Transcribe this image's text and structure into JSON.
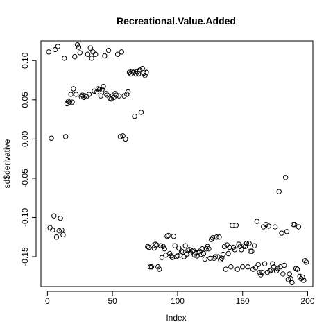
{
  "chart_data": {
    "type": "scatter",
    "title": "Recreational.Value.Added",
    "xlabel": "Index",
    "ylabel": "sd$derivative",
    "xlim": [
      -5,
      204
    ],
    "ylim": [
      -0.188,
      0.125
    ],
    "xticks": [
      0,
      50,
      100,
      150,
      200
    ],
    "xtick_labels": [
      "0",
      "50",
      "100",
      "150",
      "200"
    ],
    "yticks": [
      -0.15,
      -0.1,
      -0.05,
      0.0,
      0.05,
      0.1
    ],
    "ytick_labels": [
      "-0.15",
      "-0.10",
      "-0.05",
      "0.00",
      "0.05",
      "0.10"
    ],
    "grid": false,
    "marker": "open-circle",
    "points": [
      [
        1,
        0.111
      ],
      [
        2,
        -0.113
      ],
      [
        3,
        0.001
      ],
      [
        4,
        -0.116
      ],
      [
        5,
        -0.098
      ],
      [
        6,
        0.114
      ],
      [
        7,
        -0.125
      ],
      [
        8,
        0.118
      ],
      [
        9,
        -0.117
      ],
      [
        10,
        -0.101
      ],
      [
        11,
        -0.116
      ],
      [
        12,
        -0.122
      ],
      [
        13,
        0.103
      ],
      [
        14,
        0.003
      ],
      [
        15,
        0.045
      ],
      [
        16,
        0.048
      ],
      [
        17,
        0.047
      ],
      [
        18,
        0.057
      ],
      [
        19,
        0.047
      ],
      [
        20,
        0.064
      ],
      [
        21,
        0.105
      ],
      [
        22,
        0.057
      ],
      [
        23,
        0.12
      ],
      [
        24,
        0.117
      ],
      [
        25,
        0.11
      ],
      [
        26,
        0.054
      ],
      [
        27,
        0.056
      ],
      [
        28,
        0.053
      ],
      [
        29,
        0.055
      ],
      [
        30,
        0.054
      ],
      [
        31,
        0.108
      ],
      [
        32,
        0.057
      ],
      [
        33,
        0.116
      ],
      [
        34,
        0.103
      ],
      [
        35,
        0.111
      ],
      [
        36,
        0.061
      ],
      [
        37,
        0.108
      ],
      [
        38,
        0.06
      ],
      [
        39,
        0.064
      ],
      [
        40,
        0.063
      ],
      [
        41,
        0.055
      ],
      [
        42,
        0.063
      ],
      [
        43,
        0.067
      ],
      [
        44,
        0.106
      ],
      [
        45,
        0.058
      ],
      [
        46,
        0.056
      ],
      [
        47,
        0.113
      ],
      [
        48,
        0.052
      ],
      [
        49,
        0.051
      ],
      [
        50,
        0.055
      ],
      [
        51,
        0.053
      ],
      [
        52,
        0.058
      ],
      [
        53,
        0.056
      ],
      [
        54,
        0.108
      ],
      [
        55,
        0.055
      ],
      [
        56,
        0.003
      ],
      [
        57,
        0.111
      ],
      [
        58,
        0.004
      ],
      [
        59,
        0.055
      ],
      [
        60,
        0.0
      ],
      [
        61,
        0.057
      ],
      [
        62,
        0.06
      ],
      [
        63,
        0.085
      ],
      [
        64,
        0.083
      ],
      [
        65,
        0.086
      ],
      [
        66,
        0.085
      ],
      [
        67,
        0.029
      ],
      [
        68,
        0.083
      ],
      [
        69,
        0.086
      ],
      [
        70,
        0.083
      ],
      [
        71,
        0.088
      ],
      [
        72,
        0.034
      ],
      [
        73,
        0.09
      ],
      [
        74,
        0.084
      ],
      [
        75,
        0.081
      ],
      [
        76,
        0.085
      ],
      [
        77,
        -0.137
      ],
      [
        78,
        -0.138
      ],
      [
        79,
        -0.163
      ],
      [
        80,
        -0.163
      ],
      [
        81,
        -0.136
      ],
      [
        82,
        -0.139
      ],
      [
        83,
        -0.134
      ],
      [
        84,
        -0.135
      ],
      [
        85,
        -0.163
      ],
      [
        86,
        -0.166
      ],
      [
        87,
        -0.136
      ],
      [
        88,
        -0.151
      ],
      [
        89,
        -0.137
      ],
      [
        90,
        -0.14
      ],
      [
        91,
        -0.148
      ],
      [
        92,
        -0.124
      ],
      [
        93,
        -0.123
      ],
      [
        94,
        -0.146
      ],
      [
        95,
        -0.149
      ],
      [
        96,
        -0.151
      ],
      [
        97,
        -0.124
      ],
      [
        98,
        -0.136
      ],
      [
        99,
        -0.15
      ],
      [
        100,
        -0.149
      ],
      [
        101,
        -0.139
      ],
      [
        102,
        -0.148
      ],
      [
        103,
        -0.143
      ],
      [
        104,
        -0.144
      ],
      [
        105,
        -0.15
      ],
      [
        106,
        -0.136
      ],
      [
        107,
        -0.147
      ],
      [
        108,
        -0.142
      ],
      [
        109,
        -0.141
      ],
      [
        110,
        -0.145
      ],
      [
        111,
        -0.143
      ],
      [
        112,
        -0.142
      ],
      [
        113,
        -0.148
      ],
      [
        114,
        -0.145
      ],
      [
        115,
        -0.149
      ],
      [
        116,
        -0.145
      ],
      [
        117,
        -0.143
      ],
      [
        118,
        -0.147
      ],
      [
        119,
        -0.14
      ],
      [
        120,
        -0.146
      ],
      [
        121,
        -0.153
      ],
      [
        122,
        -0.14
      ],
      [
        123,
        -0.137
      ],
      [
        124,
        -0.14
      ],
      [
        125,
        -0.152
      ],
      [
        126,
        -0.128
      ],
      [
        127,
        -0.126
      ],
      [
        128,
        -0.152
      ],
      [
        129,
        -0.15
      ],
      [
        130,
        -0.125
      ],
      [
        131,
        -0.15
      ],
      [
        132,
        -0.125
      ],
      [
        133,
        -0.154
      ],
      [
        134,
        -0.152
      ],
      [
        135,
        -0.147
      ],
      [
        136,
        -0.137
      ],
      [
        137,
        -0.166
      ],
      [
        138,
        -0.135
      ],
      [
        139,
        -0.146
      ],
      [
        140,
        -0.138
      ],
      [
        141,
        -0.163
      ],
      [
        142,
        -0.11
      ],
      [
        143,
        -0.138
      ],
      [
        144,
        -0.141
      ],
      [
        145,
        -0.11
      ],
      [
        146,
        -0.166
      ],
      [
        147,
        -0.134
      ],
      [
        148,
        -0.137
      ],
      [
        149,
        -0.141
      ],
      [
        150,
        -0.163
      ],
      [
        151,
        -0.136
      ],
      [
        152,
        -0.137
      ],
      [
        153,
        -0.133
      ],
      [
        154,
        -0.163
      ],
      [
        155,
        -0.133
      ],
      [
        156,
        -0.143
      ],
      [
        157,
        -0.143
      ],
      [
        158,
        -0.166
      ],
      [
        159,
        -0.136
      ],
      [
        160,
        -0.164
      ],
      [
        161,
        -0.105
      ],
      [
        162,
        -0.16
      ],
      [
        163,
        -0.17
      ],
      [
        164,
        -0.173
      ],
      [
        165,
        -0.17
      ],
      [
        166,
        -0.112
      ],
      [
        167,
        -0.159
      ],
      [
        168,
        -0.109
      ],
      [
        169,
        -0.17
      ],
      [
        170,
        -0.111
      ],
      [
        171,
        -0.168
      ],
      [
        172,
        -0.167
      ],
      [
        173,
        -0.159
      ],
      [
        174,
        -0.163
      ],
      [
        175,
        -0.112
      ],
      [
        176,
        -0.168
      ],
      [
        177,
        -0.165
      ],
      [
        178,
        -0.067
      ],
      [
        179,
        -0.163
      ],
      [
        180,
        -0.12
      ],
      [
        181,
        -0.172
      ],
      [
        182,
        -0.161
      ],
      [
        183,
        -0.049
      ],
      [
        184,
        -0.118
      ],
      [
        185,
        -0.179
      ],
      [
        186,
        -0.172
      ],
      [
        187,
        -0.178
      ],
      [
        188,
        -0.183
      ],
      [
        189,
        -0.109
      ],
      [
        190,
        -0.109
      ],
      [
        191,
        -0.165
      ],
      [
        192,
        -0.166
      ],
      [
        193,
        -0.112
      ],
      [
        194,
        -0.175
      ],
      [
        195,
        -0.178
      ],
      [
        196,
        -0.176
      ],
      [
        197,
        -0.18
      ],
      [
        198,
        -0.155
      ],
      [
        199,
        -0.157
      ]
    ]
  }
}
